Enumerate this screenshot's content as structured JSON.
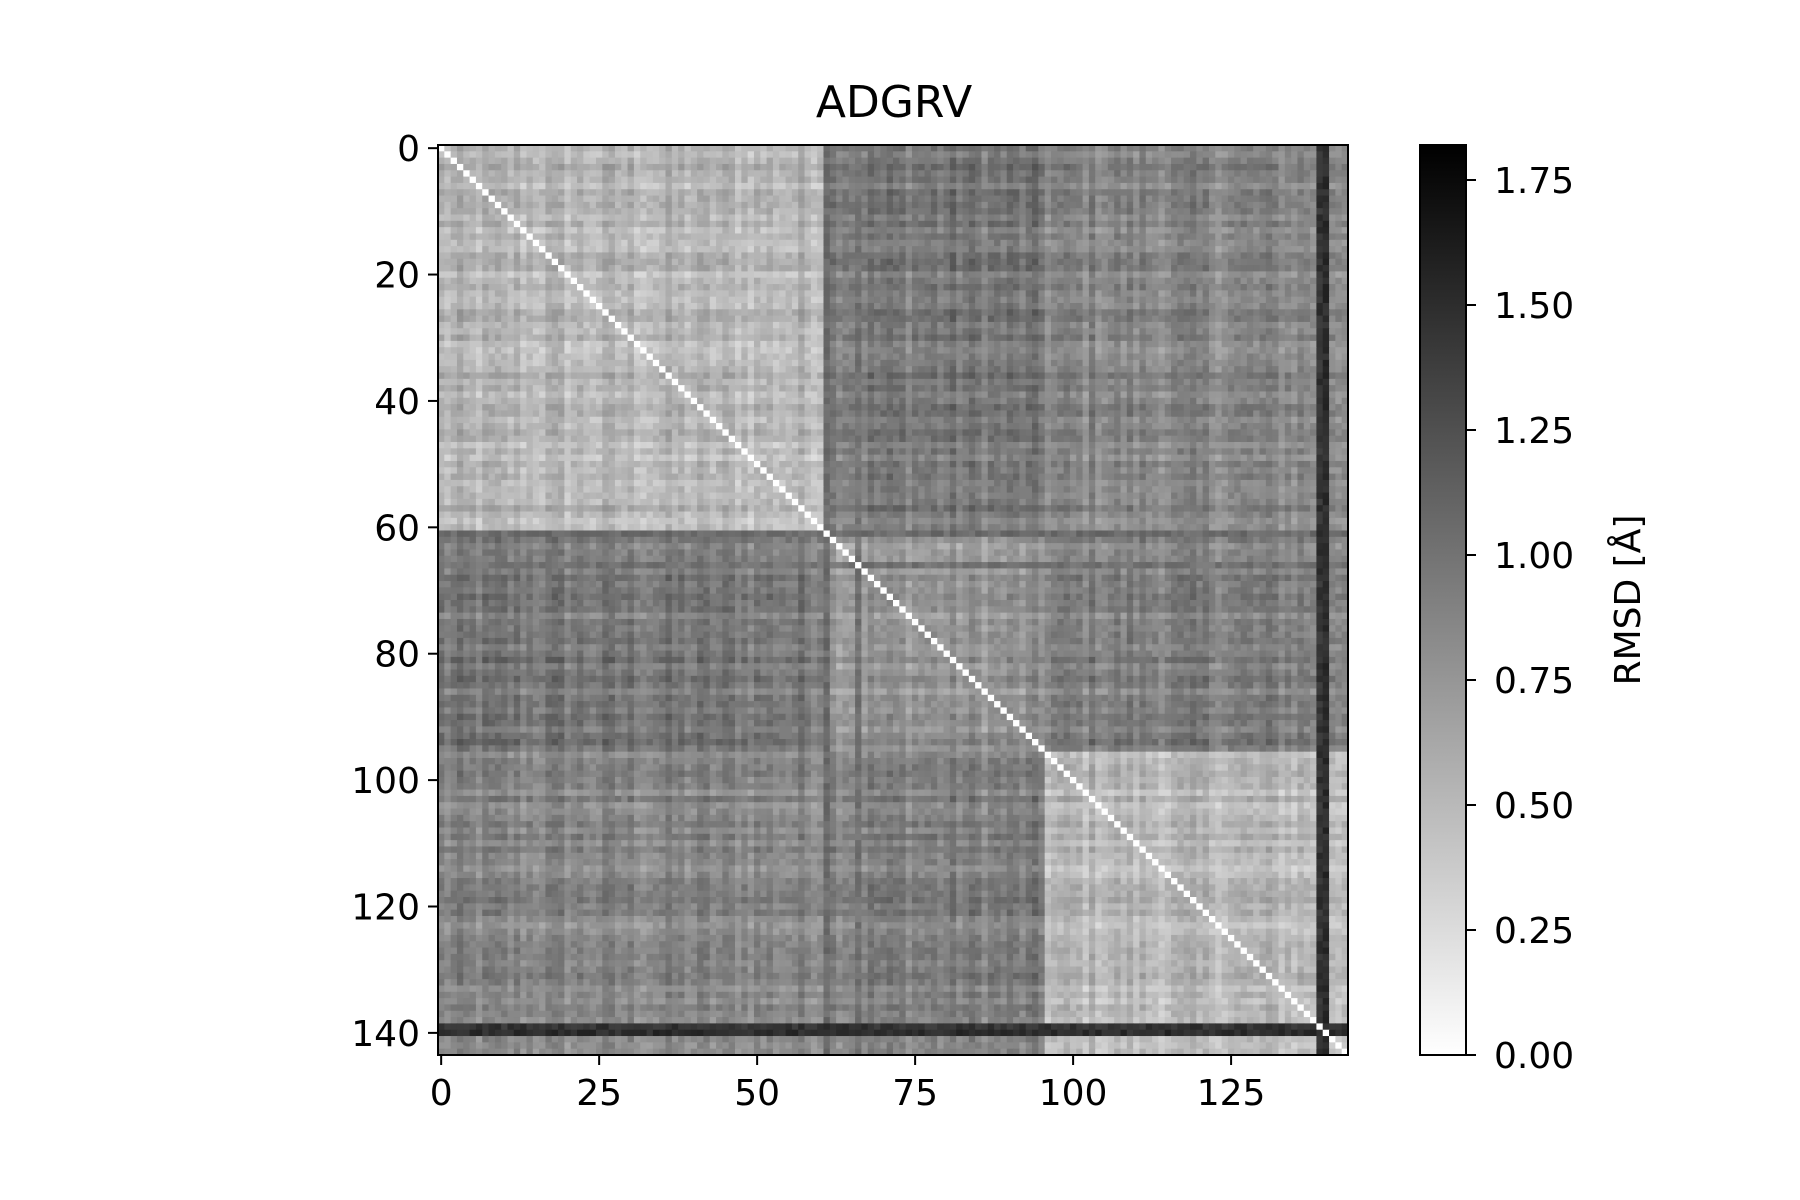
{
  "chart_data": {
    "type": "heatmap",
    "title": "ADGRV",
    "n": 144,
    "x_ticks": [
      0,
      25,
      50,
      75,
      100,
      125
    ],
    "x_tick_labels": [
      "0",
      "25",
      "50",
      "75",
      "100",
      "125"
    ],
    "y_ticks": [
      0,
      20,
      40,
      60,
      80,
      100,
      120,
      140
    ],
    "y_tick_labels": [
      "0",
      "20",
      "40",
      "60",
      "80",
      "100",
      "120",
      "140"
    ],
    "colorbar": {
      "label": "RMSD [Å]",
      "range": [
        0.0,
        1.82
      ],
      "ticks": [
        0.0,
        0.25,
        0.5,
        0.75,
        1.0,
        1.25,
        1.5,
        1.75
      ],
      "tick_labels": [
        "0.00",
        "0.25",
        "0.50",
        "0.75",
        "1.00",
        "1.25",
        "1.50",
        "1.75"
      ],
      "colormap": "grayscale, white = low, black = high"
    },
    "diagonal_value": 0.0,
    "blocks": [
      {
        "rows": [
          0,
          60
        ],
        "cols": [
          0,
          60
        ],
        "mean_rmsd": 0.5
      },
      {
        "rows": [
          0,
          60
        ],
        "cols": [
          61,
          95
        ],
        "mean_rmsd": 0.95
      },
      {
        "rows": [
          0,
          60
        ],
        "cols": [
          96,
          143
        ],
        "mean_rmsd": 0.85
      },
      {
        "rows": [
          61,
          95
        ],
        "cols": [
          0,
          60
        ],
        "mean_rmsd": 0.95
      },
      {
        "rows": [
          61,
          95
        ],
        "cols": [
          61,
          95
        ],
        "mean_rmsd": 0.75
      },
      {
        "rows": [
          61,
          95
        ],
        "cols": [
          96,
          143
        ],
        "mean_rmsd": 0.9
      },
      {
        "rows": [
          96,
          143
        ],
        "cols": [
          0,
          60
        ],
        "mean_rmsd": 0.85
      },
      {
        "rows": [
          96,
          143
        ],
        "cols": [
          61,
          95
        ],
        "mean_rmsd": 0.85
      },
      {
        "rows": [
          96,
          143
        ],
        "cols": [
          96,
          143
        ],
        "mean_rmsd": 0.5
      }
    ],
    "dark_bands": [
      {
        "index": 139,
        "mean_rmsd": 1.45
      },
      {
        "index": 140,
        "mean_rmsd": 1.5
      },
      {
        "index": 61,
        "mean_rmsd": 1.05
      },
      {
        "index": 66,
        "mean_rmsd": 1.0
      }
    ]
  }
}
